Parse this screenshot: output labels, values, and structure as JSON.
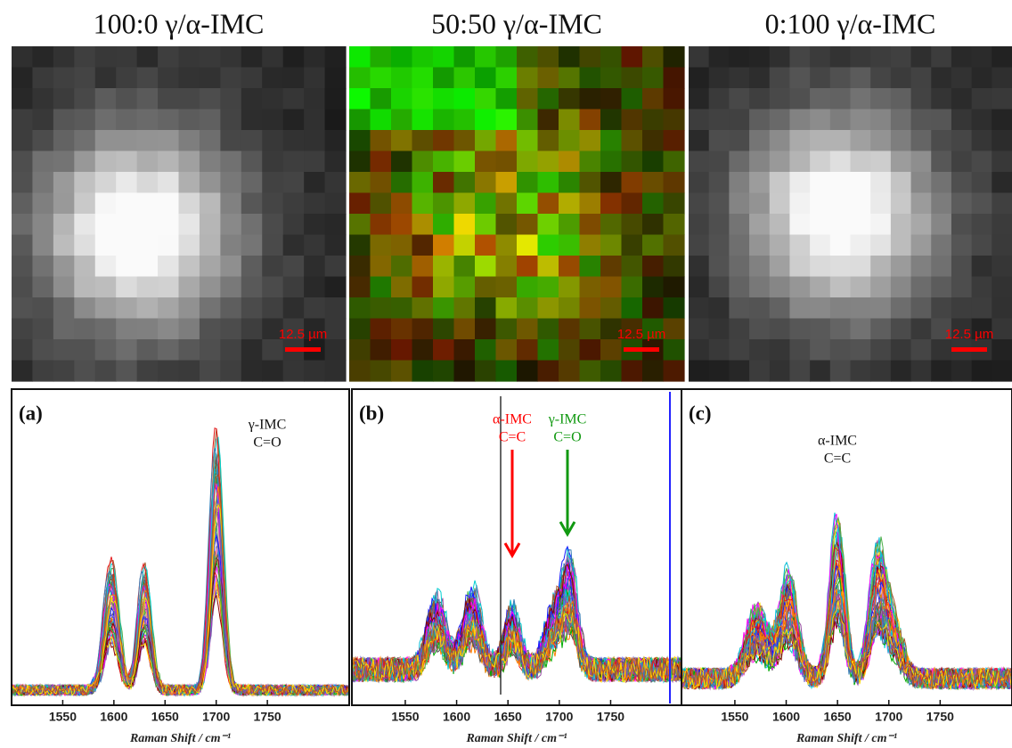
{
  "maps": [
    {
      "title": "100:0 γ/α-IMC",
      "scale_bar": "12.5 µm"
    },
    {
      "title": "50:50 γ/α-IMC",
      "scale_bar": "12.5 µm"
    },
    {
      "title": "0:100 γ/α-IMC",
      "scale_bar": "12.5 µm"
    }
  ],
  "spectra": [
    {
      "label": "(a)",
      "x_label": "Raman Shift / cm⁻¹",
      "xlim": [
        1500,
        1830
      ],
      "xticks": [
        1550,
        1600,
        1650,
        1700,
        1750
      ],
      "annotations": [
        {
          "lines": [
            "γ-IMC",
            "C=O"
          ],
          "color": "#111111"
        }
      ]
    },
    {
      "label": "(b)",
      "x_label": "Raman Shift / cm⁻¹",
      "xlim": [
        1498,
        1819
      ],
      "xticks": [
        1550,
        1600,
        1650,
        1700,
        1750
      ],
      "annotations": [
        {
          "lines": [
            "α-IMC",
            "C=C"
          ],
          "color": "#ff0000"
        },
        {
          "lines": [
            "γ-IMC",
            "C=O"
          ],
          "color": "#119911"
        }
      ]
    },
    {
      "label": "(c)",
      "x_label": "Raman Shift / cm⁻¹",
      "xlim": [
        1498,
        1820
      ],
      "xticks": [
        1550,
        1600,
        1650,
        1700,
        1750
      ],
      "annotations": [
        {
          "lines": [
            "α-IMC",
            "C=C"
          ],
          "color": "#111111"
        }
      ]
    }
  ]
}
